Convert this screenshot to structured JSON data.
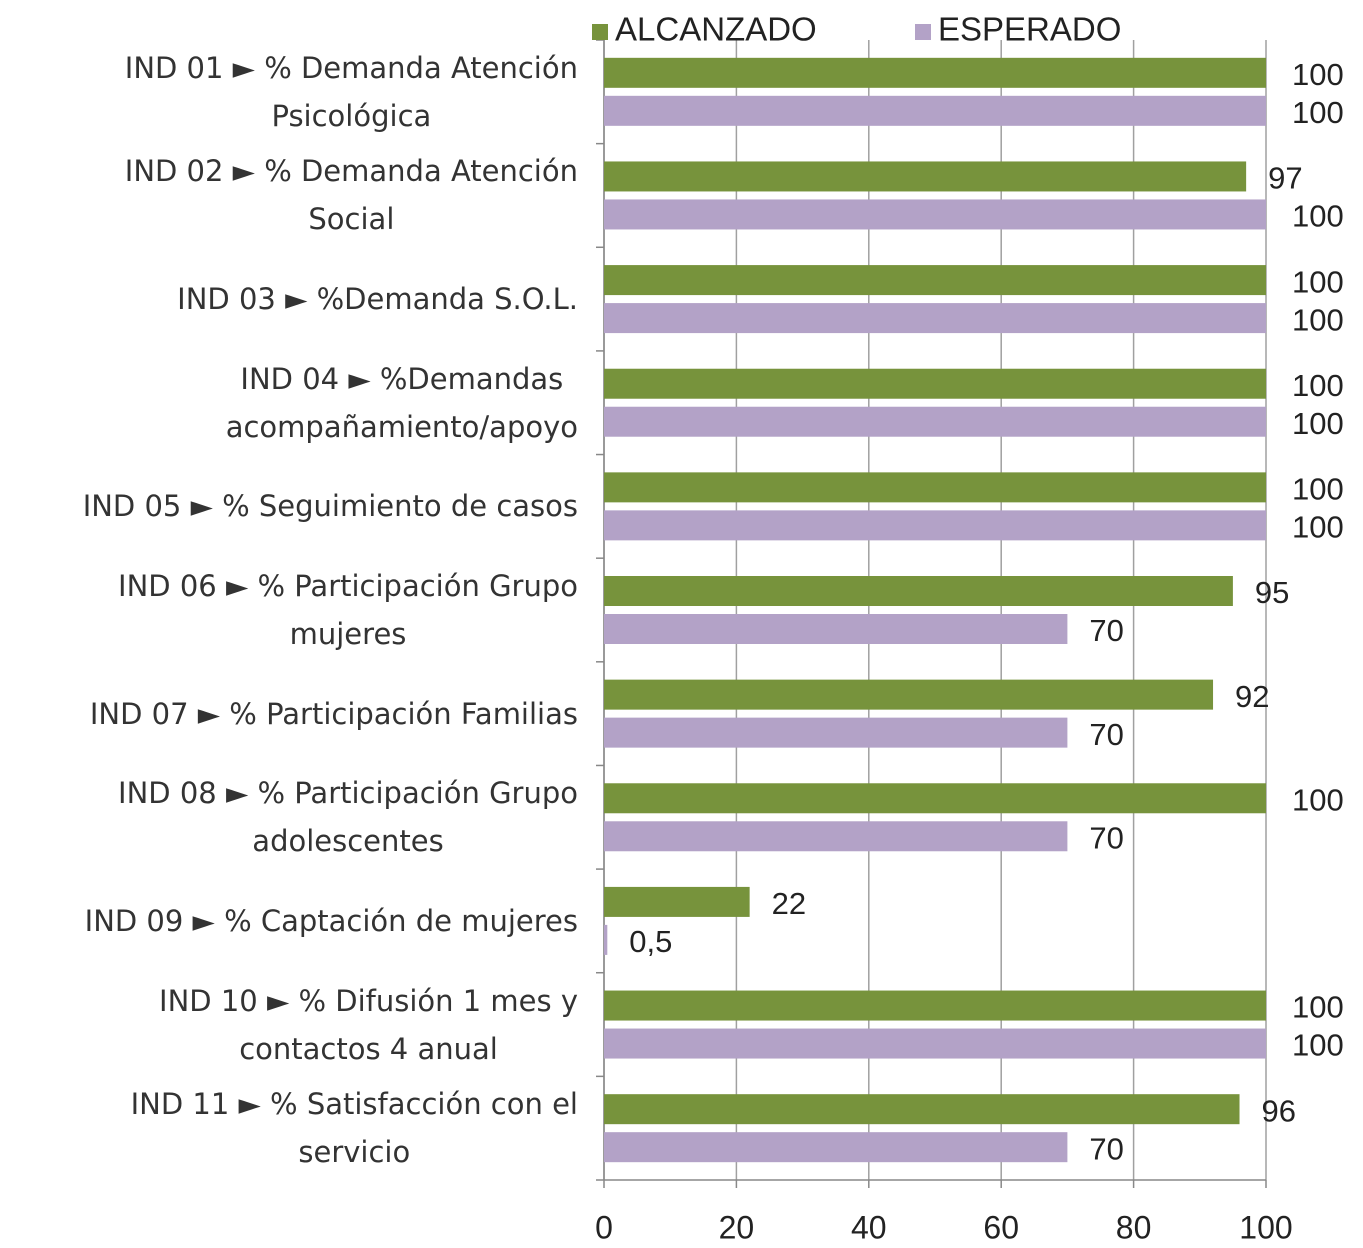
{
  "chart_data": {
    "type": "bar",
    "orientation": "horizontal",
    "categories": [
      "IND 01 ► % Demanda Atención\nPsicológica",
      "IND 02 ► % Demanda Atención\nSocial",
      "IND 03 ► %Demanda S.O.L.",
      "IND 04 ► %Demandas\nacompañamiento/apoyo",
      "IND 05 ► % Seguimiento de casos",
      "IND 06 ► % Participación Grupo\nmujeres",
      "IND 07 ► % Participación Familias",
      "IND 08 ► % Participación Grupo\nadolescentes",
      "IND 09 ► % Captación de mujeres",
      "IND 10 ► % Difusión 1 mes y\ncontactos 4 anual",
      "IND 11 ► % Satisfacción con el\nservicio"
    ],
    "series": [
      {
        "name": "ALCANZADO",
        "color": "#77933c",
        "values": [
          100,
          97,
          100,
          100,
          100,
          95,
          92,
          100,
          22,
          100,
          96
        ]
      },
      {
        "name": "ESPERADO",
        "color": "#b3a2c7",
        "values": [
          100,
          100,
          100,
          100,
          100,
          70,
          70,
          70,
          0.5,
          100,
          70
        ],
        "value_labels": [
          "100",
          "100",
          "100",
          "100",
          "100",
          "70",
          "70",
          "70",
          "0,5",
          "100",
          "70"
        ]
      }
    ],
    "xlim": [
      0,
      100
    ],
    "xticks": [
      0,
      20,
      40,
      60,
      80,
      100
    ],
    "grid": true,
    "legend": "top"
  }
}
